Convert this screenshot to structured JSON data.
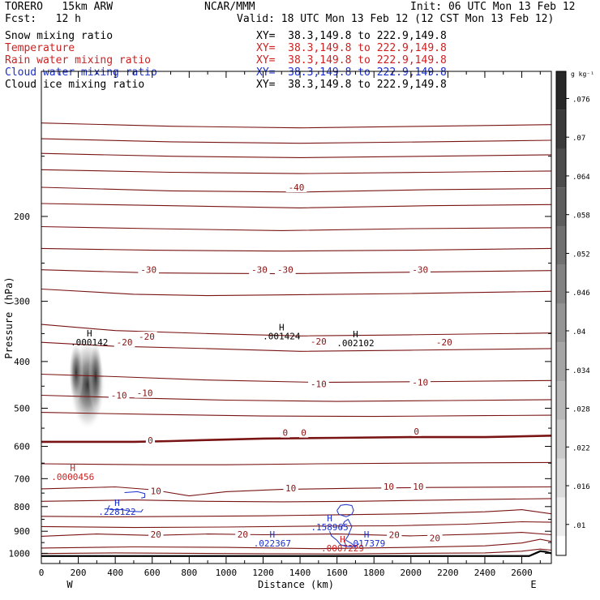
{
  "header": {
    "model": "TORERO   15km ARW",
    "center": "NCAR/MMM",
    "init": "Init: 06 UTC Mon 13 Feb 12",
    "fcst": "Fcst:   12 h",
    "valid": "Valid: 18 UTC Mon 13 Feb 12 (12 CST Mon 13 Feb 12)"
  },
  "fields": [
    {
      "name": "Snow mixing ratio",
      "xy": "XY=  38.3,149.8 to 222.9,149.8",
      "color": "#000000",
      "xy_color": "#000000"
    },
    {
      "name": "Temperature",
      "xy": "XY=  38.3,149.8 to 222.9,149.8",
      "color": "#cc2222",
      "xy_color": "#cc2222"
    },
    {
      "name": "Rain water mixing ratio",
      "xy": "XY=  38.3,149.8 to 222.9,149.8",
      "color": "#cc2222",
      "xy_color": "#cc2222"
    },
    {
      "name": "Cloud water mixing ratio",
      "xy": "XY=  38.3,149.8 to 222.9,149.8",
      "color": "#1a2fcc",
      "xy_color": "#1a2fcc"
    },
    {
      "name": "Cloud ice mixing ratio",
      "xy": "XY=  38.3,149.8 to 222.9,149.8",
      "color": "#000000",
      "xy_color": "#000000"
    }
  ],
  "chart_data": {
    "type": "cross-section contour",
    "xlabel": "Distance (km)",
    "ylabel": "Pressure (hPa)",
    "xlim": [
      0,
      2760
    ],
    "ylim": [
      1050,
      100
    ],
    "yscale": "log",
    "x_ticks": [
      0,
      200,
      400,
      600,
      800,
      1000,
      1200,
      1400,
      1600,
      1800,
      2000,
      2200,
      2400,
      2600
    ],
    "y_ticks": [
      200,
      300,
      400,
      500,
      600,
      700,
      800,
      900,
      1000
    ],
    "x_end_labels": {
      "left": "W",
      "right": "E"
    },
    "colorbar": {
      "unit": "g kg⁻¹",
      "ticks": [
        ".01",
        ".016",
        ".022",
        ".028",
        ".034",
        ".04",
        ".046",
        ".052",
        ".058",
        ".064",
        ".07",
        ".076"
      ],
      "range": [
        0.01,
        0.08
      ]
    },
    "snow_shading": {
      "center_x": 250,
      "top_p": 360,
      "bottom_p": 555
    },
    "temperature_contours": [
      {
        "level": -40,
        "points": [
          [
            0,
            128
          ],
          [
            700,
            130
          ],
          [
            1400,
            131
          ],
          [
            2100,
            130
          ],
          [
            2760,
            129
          ]
        ]
      },
      {
        "level": -40,
        "points": [
          [
            0,
            138
          ],
          [
            700,
            140
          ],
          [
            1400,
            141
          ],
          [
            2100,
            140
          ],
          [
            2760,
            139
          ]
        ]
      },
      {
        "level": -40,
        "points": [
          [
            0,
            148
          ],
          [
            700,
            150
          ],
          [
            1400,
            151
          ],
          [
            2100,
            150
          ],
          [
            2760,
            149
          ]
        ]
      },
      {
        "level": -40,
        "points": [
          [
            0,
            160
          ],
          [
            700,
            162
          ],
          [
            1400,
            163
          ],
          [
            2100,
            162
          ],
          [
            2760,
            161
          ]
        ]
      },
      {
        "level": -40,
        "points": [
          [
            0,
            174
          ],
          [
            700,
            177
          ],
          [
            1400,
            178
          ],
          [
            2100,
            176
          ],
          [
            2760,
            175
          ]
        ]
      },
      {
        "level": -40,
        "points": [
          [
            0,
            188
          ],
          [
            700,
            190
          ],
          [
            1400,
            192
          ],
          [
            2100,
            190
          ],
          [
            2760,
            189
          ]
        ]
      },
      {
        "level": -40,
        "points": [
          [
            0,
            210
          ],
          [
            600,
            212
          ],
          [
            1300,
            214
          ],
          [
            2000,
            212
          ],
          [
            2760,
            211
          ]
        ]
      },
      {
        "level": -40,
        "points": [
          [
            0,
            233
          ],
          [
            600,
            235
          ],
          [
            1300,
            236
          ],
          [
            2000,
            235
          ],
          [
            2760,
            233
          ]
        ]
      },
      {
        "level": -40,
        "points": [
          [
            0,
            258
          ],
          [
            600,
            262
          ],
          [
            1300,
            263
          ],
          [
            2000,
            261
          ],
          [
            2760,
            259
          ]
        ]
      },
      {
        "level": -30,
        "points": [
          [
            0,
            283
          ],
          [
            500,
            290
          ],
          [
            900,
            292
          ],
          [
            1300,
            291
          ],
          [
            2000,
            289
          ],
          [
            2760,
            286
          ]
        ]
      },
      {
        "level": -20,
        "points": [
          [
            0,
            335
          ],
          [
            400,
            345
          ],
          [
            900,
            350
          ],
          [
            1400,
            354
          ],
          [
            2000,
            352
          ],
          [
            2760,
            349
          ]
        ]
      },
      {
        "level": -20,
        "points": [
          [
            0,
            365
          ],
          [
            400,
            372
          ],
          [
            900,
            376
          ],
          [
            1400,
            381
          ],
          [
            2000,
            379
          ],
          [
            2760,
            376
          ]
        ]
      },
      {
        "level": -10,
        "points": [
          [
            0,
            425
          ],
          [
            400,
            430
          ],
          [
            900,
            437
          ],
          [
            1500,
            442
          ],
          [
            2200,
            440
          ],
          [
            2760,
            438
          ]
        ]
      },
      {
        "level": -10,
        "points": [
          [
            0,
            470
          ],
          [
            500,
            476
          ],
          [
            1000,
            481
          ],
          [
            1600,
            484
          ],
          [
            2200,
            482
          ],
          [
            2760,
            480
          ]
        ]
      },
      {
        "level": 0,
        "points": [
          [
            0,
            510
          ],
          [
            600,
            515
          ],
          [
            1200,
            519
          ],
          [
            1800,
            520
          ],
          [
            2400,
            518
          ],
          [
            2760,
            517
          ]
        ]
      },
      {
        "level": 0,
        "points": [
          [
            0,
            587
          ],
          [
            500,
            587
          ],
          [
            700,
            585
          ],
          [
            900,
            582
          ],
          [
            1200,
            578
          ],
          [
            1600,
            576
          ],
          [
            2000,
            574
          ],
          [
            2400,
            574
          ],
          [
            2760,
            570
          ]
        ]
      },
      {
        "level": 10,
        "points": [
          [
            0,
            652
          ],
          [
            600,
            655
          ],
          [
            1000,
            655
          ],
          [
            1500,
            652
          ],
          [
            2000,
            650
          ],
          [
            2760,
            648
          ]
        ]
      },
      {
        "level": 10,
        "points": [
          [
            0,
            735
          ],
          [
            400,
            728
          ],
          [
            600,
            738
          ],
          [
            800,
            760
          ],
          [
            1000,
            745
          ],
          [
            1300,
            737
          ],
          [
            1700,
            733
          ],
          [
            2100,
            730
          ],
          [
            2760,
            728
          ]
        ]
      },
      {
        "level": 10,
        "points": [
          [
            0,
            780
          ],
          [
            500,
            775
          ],
          [
            900,
            780
          ],
          [
            1300,
            782
          ],
          [
            1700,
            780
          ],
          [
            2100,
            776
          ],
          [
            2760,
            770
          ]
        ]
      },
      {
        "level": 20,
        "points": [
          [
            0,
            838
          ],
          [
            400,
            840
          ],
          [
            800,
            838
          ],
          [
            1200,
            836
          ],
          [
            1600,
            832
          ],
          [
            2000,
            828
          ],
          [
            2400,
            820
          ],
          [
            2600,
            812
          ],
          [
            2760,
            828
          ]
        ]
      },
      {
        "level": 20,
        "points": [
          [
            0,
            880
          ],
          [
            500,
            884
          ],
          [
            1000,
            882
          ],
          [
            1500,
            878
          ],
          [
            1900,
            877
          ],
          [
            2300,
            870
          ],
          [
            2600,
            860
          ],
          [
            2760,
            862
          ]
        ]
      },
      {
        "level": 20,
        "points": [
          [
            0,
            922
          ],
          [
            300,
            912
          ],
          [
            600,
            918
          ],
          [
            900,
            912
          ],
          [
            1200,
            915
          ],
          [
            1600,
            912
          ],
          [
            2000,
            920
          ],
          [
            2400,
            912
          ],
          [
            2600,
            905
          ],
          [
            2760,
            915
          ]
        ]
      },
      {
        "level": 20,
        "points": [
          [
            0,
            975
          ],
          [
            500,
            970
          ],
          [
            1000,
            972
          ],
          [
            1500,
            978
          ],
          [
            2000,
            972
          ],
          [
            2400,
            965
          ],
          [
            2600,
            952
          ],
          [
            2700,
            935
          ],
          [
            2760,
            945
          ]
        ]
      },
      {
        "level": 20,
        "points": [
          [
            0,
            1001
          ],
          [
            400,
            998
          ],
          [
            800,
            1000
          ],
          [
            1200,
            1002
          ],
          [
            1600,
            1003
          ],
          [
            2000,
            1000
          ],
          [
            2400,
            998
          ],
          [
            2600,
            990
          ],
          [
            2700,
            980
          ],
          [
            2760,
            985
          ]
        ]
      }
    ],
    "temperature_labels": [
      {
        "text": "-40",
        "x": 1380,
        "p": 174
      },
      {
        "text": "-30",
        "x": 580,
        "p": 258
      },
      {
        "text": "-30",
        "x": 1180,
        "p": 258
      },
      {
        "text": "-30",
        "x": 1320,
        "p": 258
      },
      {
        "text": "-30",
        "x": 2050,
        "p": 258
      },
      {
        "text": "-20",
        "x": 450,
        "p": 365
      },
      {
        "text": "-20",
        "x": 570,
        "p": 355
      },
      {
        "text": "-20",
        "x": 1500,
        "p": 363
      },
      {
        "text": "-20",
        "x": 2180,
        "p": 365
      },
      {
        "text": "-10",
        "x": 420,
        "p": 470
      },
      {
        "text": "-10",
        "x": 560,
        "p": 465
      },
      {
        "text": "-10",
        "x": 1500,
        "p": 445
      },
      {
        "text": "-10",
        "x": 2050,
        "p": 442
      },
      {
        "text": "0",
        "x": 590,
        "p": 583
      },
      {
        "text": "0",
        "x": 1320,
        "p": 562
      },
      {
        "text": "0",
        "x": 1420,
        "p": 562
      },
      {
        "text": "0",
        "x": 2030,
        "p": 558
      },
      {
        "text": "10",
        "x": 620,
        "p": 742
      },
      {
        "text": "10",
        "x": 1350,
        "p": 732
      },
      {
        "text": "10",
        "x": 1880,
        "p": 727
      },
      {
        "text": "10",
        "x": 2040,
        "p": 727
      },
      {
        "text": "20",
        "x": 620,
        "p": 913
      },
      {
        "text": "20",
        "x": 1090,
        "p": 913
      },
      {
        "text": "20",
        "x": 1910,
        "p": 915
      },
      {
        "text": "20",
        "x": 2130,
        "p": 930
      }
    ],
    "maxima": [
      {
        "field": "snow",
        "marker": "H",
        "value": ".000142",
        "x": 260,
        "p": 355,
        "color": "#000000"
      },
      {
        "field": "ice",
        "marker": "H",
        "value": ".001424",
        "x": 1300,
        "p": 345,
        "color": "#000000"
      },
      {
        "field": "ice",
        "marker": "H",
        "value": ".002102",
        "x": 1700,
        "p": 356,
        "color": "#000000"
      },
      {
        "field": "rain",
        "marker": "H",
        "value": ".0000456",
        "x": 170,
        "p": 675,
        "color": "#cc2222"
      },
      {
        "field": "cloud",
        "marker": "H",
        "value": ".228122",
        "x": 410,
        "p": 797,
        "color": "#1a2fcc"
      },
      {
        "field": "cloud",
        "marker": "H",
        "value": ".158965",
        "x": 1560,
        "p": 858,
        "color": "#1a2fcc"
      },
      {
        "field": "cloud",
        "marker": "H",
        "value": ".022367",
        "x": 1250,
        "p": 928,
        "color": "#1a2fcc"
      },
      {
        "field": "cloud",
        "marker": "H",
        "value": ".017379",
        "x": 1760,
        "p": 928,
        "color": "#1a2fcc"
      },
      {
        "field": "rain",
        "marker": "H",
        "value": ".0007229",
        "x": 1630,
        "p": 950,
        "color": "#cc2222"
      }
    ],
    "cloud_contours": [
      [
        [
          450,
          748
        ],
        [
          520,
          745
        ],
        [
          560,
          752
        ],
        [
          560,
          765
        ],
        [
          540,
          768
        ]
      ],
      [
        [
          370,
          795
        ],
        [
          360,
          808
        ],
        [
          380,
          812
        ],
        [
          440,
          812
        ],
        [
          480,
          818
        ],
        [
          540,
          820
        ],
        [
          550,
          810
        ]
      ],
      [
        [
          1600,
          815
        ],
        [
          1620,
          795
        ],
        [
          1650,
          792
        ],
        [
          1680,
          796
        ],
        [
          1690,
          815
        ],
        [
          1680,
          830
        ],
        [
          1650,
          840
        ],
        [
          1610,
          830
        ],
        [
          1600,
          815
        ]
      ],
      [
        [
          1620,
          890
        ],
        [
          1640,
          860
        ],
        [
          1660,
          850
        ],
        [
          1680,
          880
        ],
        [
          1660,
          920
        ],
        [
          1640,
          945
        ],
        [
          1650,
          968
        ]
      ],
      [
        [
          1560,
          900
        ],
        [
          1570,
          920
        ],
        [
          1600,
          940
        ],
        [
          1620,
          960
        ],
        [
          1650,
          968
        ],
        [
          1700,
          968
        ],
        [
          1720,
          955
        ]
      ],
      [
        [
          1650,
          940
        ],
        [
          1680,
          955
        ],
        [
          1700,
          972
        ]
      ]
    ]
  }
}
